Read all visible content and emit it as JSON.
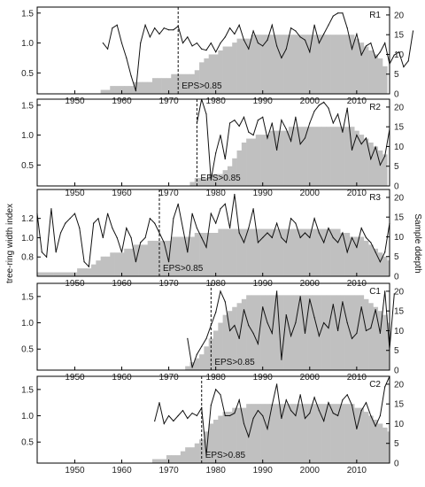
{
  "figure": {
    "ylabel_left": "tree-ring width index",
    "ylabel_right": "Sample ddepth"
  },
  "colors": {
    "depth_fill": "#c0c0c0",
    "line": "#111111",
    "eps_line": "#111111"
  },
  "chart_data": [
    {
      "type": "area",
      "panel": "R1",
      "eps_label": "EPS>0.85",
      "eps_year": 1972,
      "xlim": [
        1942,
        2017
      ],
      "ylim_left": [
        0.15,
        1.6
      ],
      "ylim_right": [
        0,
        22
      ],
      "xticks": [
        "1950",
        "1960",
        "1970",
        "1980",
        "1990",
        "2000",
        "2010"
      ],
      "yticks_left": [
        "0.5",
        "1.0",
        "1.5"
      ],
      "yticks_right": [
        "0",
        "5",
        "10",
        "15",
        "20"
      ],
      "depth": {
        "start": 1956,
        "values": [
          1,
          1,
          2,
          2,
          2,
          2,
          2,
          3,
          3,
          3,
          3,
          4,
          4,
          4,
          4,
          5,
          5,
          5,
          5,
          5,
          6,
          8,
          9,
          10,
          10,
          11,
          12,
          12,
          13,
          14,
          14,
          14,
          15,
          15,
          15,
          15,
          15,
          15,
          15,
          15,
          15,
          15,
          15,
          15,
          15,
          15,
          15,
          15,
          15,
          15,
          15,
          15,
          15,
          15,
          14,
          13,
          12,
          11,
          10,
          9,
          7
        ]
      },
      "index": {
        "start": 1956,
        "values": [
          1.0,
          0.9,
          1.25,
          1.3,
          1.0,
          0.75,
          0.45,
          0.2,
          1.0,
          1.3,
          1.1,
          1.25,
          1.15,
          1.25,
          1.22,
          1.22,
          1.28,
          1.0,
          1.1,
          0.95,
          1.0,
          0.9,
          0.88,
          1.0,
          0.85,
          1.0,
          1.1,
          1.25,
          1.15,
          1.3,
          1.05,
          0.9,
          1.2,
          1.0,
          0.95,
          1.05,
          1.3,
          0.95,
          0.75,
          0.9,
          1.25,
          1.2,
          1.1,
          1.05,
          0.85,
          1.3,
          1.0,
          1.15,
          1.3,
          1.45,
          1.5,
          1.5,
          1.25,
          0.9,
          1.15,
          0.8,
          0.95,
          1.0,
          0.75,
          0.85,
          1.0,
          0.65,
          0.8,
          0.85,
          0.6,
          0.7,
          1.2
        ]
      }
    },
    {
      "type": "area",
      "panel": "R2",
      "eps_label": "EPS>0.85",
      "eps_year": 1976,
      "xlim": [
        1942,
        2017
      ],
      "ylim_left": [
        0.15,
        1.6
      ],
      "ylim_right": [
        0,
        22
      ],
      "xticks": [
        "1950",
        "1960",
        "1970",
        "1980",
        "1990",
        "2000",
        "2010"
      ],
      "yticks_left": [
        "0.5",
        "1.0",
        "1.5"
      ],
      "yticks_right": [
        "0",
        "5",
        "10",
        "15",
        "20"
      ],
      "depth": {
        "start": 1975,
        "values": [
          1,
          2,
          2,
          2,
          3,
          3,
          3,
          4,
          5,
          7,
          9,
          11,
          12,
          12,
          13,
          13,
          13,
          14,
          14,
          14,
          14,
          15,
          15,
          15,
          15,
          15,
          15,
          15,
          15,
          15,
          15,
          15,
          15,
          15,
          15,
          14,
          13,
          12,
          11,
          10,
          9,
          8
        ]
      },
      "index": {
        "start": 1976,
        "values": [
          1.2,
          1.6,
          1.35,
          0.25,
          0.7,
          1.0,
          0.6,
          1.2,
          1.25,
          1.15,
          1.3,
          1.05,
          1.0,
          1.25,
          1.3,
          0.95,
          1.2,
          0.75,
          1.25,
          1.1,
          0.9,
          1.3,
          0.85,
          0.95,
          1.2,
          1.4,
          1.5,
          1.55,
          1.45,
          1.2,
          1.35,
          1.05,
          1.45,
          0.75,
          1.0,
          0.85,
          0.95,
          0.6,
          0.8,
          0.5,
          0.65,
          1.1
        ]
      }
    },
    {
      "type": "area",
      "panel": "R3",
      "eps_label": "EPS>0.85",
      "eps_year": 1968,
      "xlim": [
        1942,
        2017
      ],
      "ylim_left": [
        0.6,
        1.5
      ],
      "ylim_right": [
        0,
        22
      ],
      "xticks": [
        "1950",
        "1960",
        "1970",
        "1980",
        "1990",
        "2000",
        "2010"
      ],
      "yticks_left": [
        "0.8",
        "1.0",
        "1.2"
      ],
      "yticks_right": [
        "0",
        "5",
        "10",
        "15",
        "20"
      ],
      "depth": {
        "start": 1942,
        "values": [
          1,
          1,
          1,
          1,
          1,
          1,
          1,
          1,
          1,
          2,
          2,
          2,
          3,
          4,
          5,
          5,
          6,
          6,
          6,
          7,
          7,
          8,
          8,
          8,
          9,
          9,
          9,
          9,
          9,
          10,
          10,
          10,
          10,
          10,
          11,
          11,
          11,
          11,
          11,
          12,
          12,
          12,
          12,
          12,
          12,
          12,
          12,
          12,
          12,
          12,
          12,
          12,
          12,
          12,
          12,
          12,
          12,
          12,
          12,
          12,
          12,
          12,
          12,
          12,
          12,
          11,
          11,
          10,
          10,
          10,
          9,
          8,
          7,
          6,
          5,
          4
        ]
      },
      "index": {
        "start": 1942,
        "values": [
          1.25,
          0.85,
          0.8,
          1.3,
          0.85,
          1.05,
          1.15,
          1.2,
          1.25,
          1.1,
          0.75,
          0.7,
          1.15,
          1.2,
          1.0,
          1.25,
          1.1,
          1.0,
          0.85,
          1.1,
          1.0,
          0.75,
          0.95,
          1.0,
          1.2,
          1.15,
          1.05,
          0.95,
          0.75,
          1.2,
          1.35,
          1.1,
          0.85,
          1.25,
          1.1,
          1.0,
          0.9,
          1.25,
          1.15,
          1.3,
          1.35,
          1.1,
          1.45,
          1.05,
          0.95,
          1.1,
          1.3,
          0.95,
          1.0,
          1.05,
          1.0,
          1.15,
          1.0,
          0.95,
          1.2,
          1.15,
          1.0,
          1.05,
          1.0,
          1.2,
          1.05,
          0.95,
          1.1,
          1.0,
          0.95,
          1.05,
          0.85,
          1.0,
          0.9,
          1.1,
          1.0,
          0.95,
          0.85,
          0.75,
          0.85,
          1.15
        ]
      }
    },
    {
      "type": "area",
      "panel": "C1",
      "eps_label": "EPS>0.85",
      "eps_year": 1979,
      "xlim": [
        1942,
        2017
      ],
      "ylim_left": [
        0.1,
        1.75
      ],
      "ylim_right": [
        0,
        22
      ],
      "xticks": [
        "1950",
        "1960",
        "1970",
        "1980",
        "1990",
        "2000",
        "2010"
      ],
      "yticks_left": [
        "0.5",
        "1.0",
        "1.5"
      ],
      "yticks_right": [
        "0",
        "5",
        "10",
        "15",
        "20"
      ],
      "depth": {
        "start": 1974,
        "values": [
          1,
          2,
          3,
          4,
          6,
          8,
          10,
          12,
          14,
          15,
          16,
          17,
          18,
          19,
          19,
          19,
          19,
          19,
          19,
          19,
          19,
          19,
          19,
          19,
          19,
          19,
          19,
          19,
          19,
          19,
          19,
          19,
          19,
          19,
          19,
          19,
          19,
          19,
          18,
          17,
          16,
          15,
          14,
          12
        ]
      },
      "index": {
        "start": 1974,
        "values": [
          0.7,
          0.15,
          0.4,
          0.55,
          0.7,
          0.95,
          1.2,
          1.6,
          1.4,
          0.85,
          0.95,
          0.7,
          1.25,
          0.95,
          0.8,
          0.6,
          1.3,
          1.0,
          0.8,
          1.6,
          0.3,
          1.15,
          0.75,
          1.0,
          1.5,
          0.8,
          1.45,
          1.1,
          0.75,
          1.0,
          0.9,
          1.35,
          0.85,
          1.4,
          1.0,
          0.7,
          0.8,
          1.3,
          0.85,
          0.9,
          1.25,
          0.8,
          1.6,
          0.5,
          1.55
        ]
      }
    },
    {
      "type": "area",
      "panel": "C2",
      "eps_label": "EPS>0.85",
      "eps_year": 1977,
      "xlim": [
        1942,
        2017
      ],
      "ylim_left": [
        0.1,
        1.75
      ],
      "ylim_right": [
        0,
        22
      ],
      "xticks": [
        "1950",
        "1960",
        "1970",
        "1980",
        "1990",
        "2000",
        "2010"
      ],
      "yticks_left": [
        "0.5",
        "1.0",
        "1.5"
      ],
      "yticks_right": [
        "0",
        "5",
        "10",
        "15",
        "20"
      ],
      "depth": {
        "start": 1967,
        "values": [
          1,
          1,
          1,
          2,
          2,
          2,
          3,
          4,
          4,
          5,
          6,
          8,
          10,
          11,
          12,
          13,
          13,
          14,
          14,
          14,
          15,
          15,
          15,
          15,
          15,
          15,
          15,
          15,
          15,
          15,
          15,
          15,
          15,
          15,
          15,
          15,
          15,
          15,
          15,
          15,
          15,
          15,
          15,
          14,
          14,
          13,
          12,
          11,
          10,
          9,
          8
        ]
      },
      "index": {
        "start": 1967,
        "values": [
          0.9,
          1.25,
          0.85,
          1.0,
          0.9,
          1.0,
          1.1,
          0.95,
          1.05,
          1.0,
          1.15,
          0.25,
          1.2,
          1.5,
          1.4,
          1.0,
          1.0,
          1.05,
          1.3,
          0.85,
          0.6,
          0.95,
          1.1,
          1.0,
          0.75,
          1.2,
          1.6,
          0.95,
          1.3,
          1.1,
          1.0,
          1.4,
          0.95,
          1.05,
          1.35,
          1.1,
          0.9,
          1.25,
          1.05,
          1.0,
          1.3,
          1.4,
          1.2,
          0.75,
          1.1,
          1.25,
          1.0,
          0.8,
          1.0,
          1.55,
          1.75
        ]
      }
    }
  ]
}
